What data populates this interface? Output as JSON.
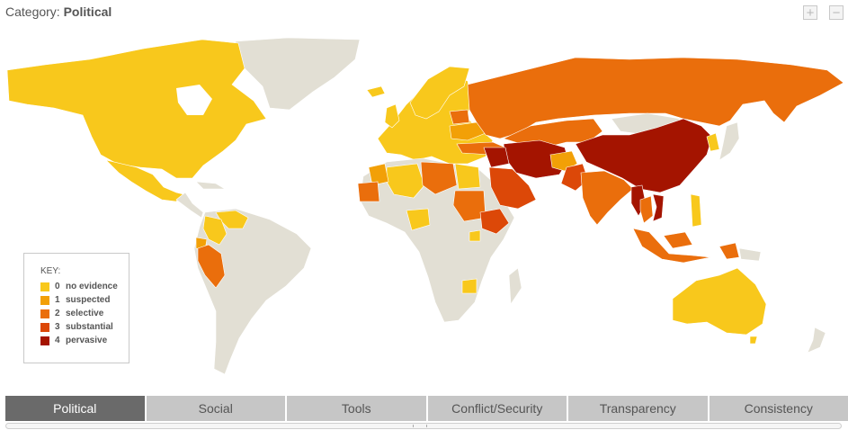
{
  "header": {
    "category_label": "Category:",
    "category_value": "Political"
  },
  "zoom": {
    "in_symbol": "+",
    "out_symbol": "−"
  },
  "key": {
    "title": "KEY:",
    "levels": [
      {
        "level": "0",
        "label": "no evidence",
        "color": "#f8c81c"
      },
      {
        "level": "1",
        "label": "suspected",
        "color": "#f2a007"
      },
      {
        "level": "2",
        "label": "selective",
        "color": "#ea6e0c"
      },
      {
        "level": "3",
        "label": "substantial",
        "color": "#dc4808"
      },
      {
        "level": "4",
        "label": "pervasive",
        "color": "#a41400"
      }
    ]
  },
  "tabs": [
    "Political",
    "Social",
    "Tools",
    "Conflict/Security",
    "Transparency",
    "Consistency"
  ],
  "active_tab": "Political",
  "colors": {
    "no_data": "#e2dfd4",
    "ocean": "#ffffff"
  }
}
